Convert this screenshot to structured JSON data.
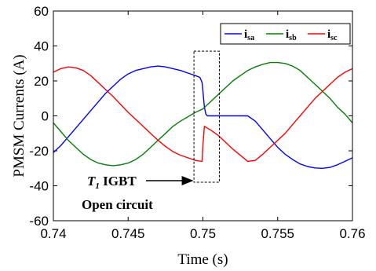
{
  "chart_data": {
    "type": "line",
    "xlabel": "Time (s)",
    "ylabel": "PMSM Currents (A)",
    "xlim": [
      0.74,
      0.76
    ],
    "ylim": [
      -60,
      60
    ],
    "xticks": [
      "0.74",
      "0.745",
      "0.75",
      "0.755",
      "0.76"
    ],
    "yticks": [
      "60",
      "40",
      "20",
      "0",
      "-20",
      "-40",
      "-60"
    ],
    "legend_position": "top-right",
    "series": [
      {
        "base": "i",
        "sub": "sa",
        "color": "#0000ff",
        "points": [
          [
            0.74,
            -21
          ],
          [
            0.7405,
            -17
          ],
          [
            0.741,
            -12
          ],
          [
            0.7415,
            -7
          ],
          [
            0.742,
            -2
          ],
          [
            0.7425,
            3
          ],
          [
            0.743,
            8
          ],
          [
            0.7435,
            13
          ],
          [
            0.744,
            17
          ],
          [
            0.7445,
            21
          ],
          [
            0.745,
            24
          ],
          [
            0.7455,
            26
          ],
          [
            0.746,
            27
          ],
          [
            0.7465,
            28
          ],
          [
            0.747,
            28.5
          ],
          [
            0.7475,
            28
          ],
          [
            0.748,
            27
          ],
          [
            0.7485,
            26
          ],
          [
            0.749,
            24.5
          ],
          [
            0.7495,
            23
          ],
          [
            0.7498,
            22
          ],
          [
            0.74995,
            19
          ],
          [
            0.7501,
            5
          ],
          [
            0.7502,
            1
          ],
          [
            0.7503,
            0
          ],
          [
            0.753,
            0
          ],
          [
            0.7535,
            -3
          ],
          [
            0.754,
            -8
          ],
          [
            0.7545,
            -13
          ],
          [
            0.755,
            -18
          ],
          [
            0.7555,
            -22
          ],
          [
            0.756,
            -25
          ],
          [
            0.7565,
            -27.5
          ],
          [
            0.757,
            -29
          ],
          [
            0.7575,
            -29.8
          ],
          [
            0.758,
            -30
          ],
          [
            0.7585,
            -29.5
          ],
          [
            0.759,
            -28
          ],
          [
            0.7595,
            -26
          ],
          [
            0.76,
            -24
          ]
        ]
      },
      {
        "base": "i",
        "sub": "sb",
        "color": "#008000",
        "points": [
          [
            0.74,
            -4
          ],
          [
            0.7405,
            -9
          ],
          [
            0.741,
            -14
          ],
          [
            0.7415,
            -18
          ],
          [
            0.742,
            -22
          ],
          [
            0.7425,
            -25
          ],
          [
            0.743,
            -27
          ],
          [
            0.7435,
            -28
          ],
          [
            0.744,
            -28.5
          ],
          [
            0.7445,
            -28
          ],
          [
            0.745,
            -27
          ],
          [
            0.7455,
            -25
          ],
          [
            0.746,
            -22
          ],
          [
            0.7465,
            -18
          ],
          [
            0.747,
            -14
          ],
          [
            0.7475,
            -10
          ],
          [
            0.748,
            -6
          ],
          [
            0.7485,
            -3
          ],
          [
            0.749,
            -0.5
          ],
          [
            0.7495,
            2
          ],
          [
            0.75,
            4
          ],
          [
            0.7505,
            8
          ],
          [
            0.751,
            12
          ],
          [
            0.7515,
            16
          ],
          [
            0.752,
            20
          ],
          [
            0.7525,
            23
          ],
          [
            0.753,
            26
          ],
          [
            0.7535,
            28
          ],
          [
            0.754,
            29.5
          ],
          [
            0.7545,
            30.5
          ],
          [
            0.755,
            30.5
          ],
          [
            0.7555,
            30
          ],
          [
            0.756,
            28.5
          ],
          [
            0.7565,
            26
          ],
          [
            0.757,
            22
          ],
          [
            0.7575,
            18
          ],
          [
            0.758,
            14
          ],
          [
            0.7585,
            10
          ],
          [
            0.759,
            5
          ],
          [
            0.7595,
            1
          ],
          [
            0.76,
            -4
          ]
        ]
      },
      {
        "base": "i",
        "sub": "sc",
        "color": "#ff0000",
        "points": [
          [
            0.74,
            25
          ],
          [
            0.7405,
            27
          ],
          [
            0.741,
            28
          ],
          [
            0.7415,
            27.5
          ],
          [
            0.742,
            26
          ],
          [
            0.7425,
            23
          ],
          [
            0.743,
            19
          ],
          [
            0.7435,
            15
          ],
          [
            0.744,
            11
          ],
          [
            0.7445,
            6.5
          ],
          [
            0.745,
            2
          ],
          [
            0.7455,
            -2
          ],
          [
            0.746,
            -6
          ],
          [
            0.7465,
            -10
          ],
          [
            0.747,
            -14
          ],
          [
            0.7475,
            -17.5
          ],
          [
            0.748,
            -20.5
          ],
          [
            0.7485,
            -22.5
          ],
          [
            0.749,
            -24
          ],
          [
            0.7495,
            -25.5
          ],
          [
            0.74995,
            -26
          ],
          [
            0.75,
            -17
          ],
          [
            0.7501,
            -6
          ],
          [
            0.7505,
            -8
          ],
          [
            0.751,
            -11
          ],
          [
            0.7515,
            -15
          ],
          [
            0.752,
            -19
          ],
          [
            0.7525,
            -22.5
          ],
          [
            0.753,
            -26
          ],
          [
            0.7535,
            -25.5
          ],
          [
            0.754,
            -22
          ],
          [
            0.7545,
            -18
          ],
          [
            0.755,
            -14
          ],
          [
            0.7555,
            -10
          ],
          [
            0.756,
            -5
          ],
          [
            0.7565,
            0
          ],
          [
            0.757,
            5
          ],
          [
            0.7575,
            10
          ],
          [
            0.758,
            14
          ],
          [
            0.7585,
            18
          ],
          [
            0.759,
            22
          ],
          [
            0.7595,
            25
          ],
          [
            0.76,
            27
          ]
        ]
      }
    ],
    "highlight_box": {
      "x0": 0.7494,
      "x1": 0.7511,
      "y0": -38,
      "y1": 37
    },
    "annotation": {
      "line1_italic": "T",
      "line1_sub": "1",
      "line1_rest": " IGBT",
      "line2": "Open circuit",
      "arrow_to": [
        0.7494,
        -38
      ]
    }
  }
}
